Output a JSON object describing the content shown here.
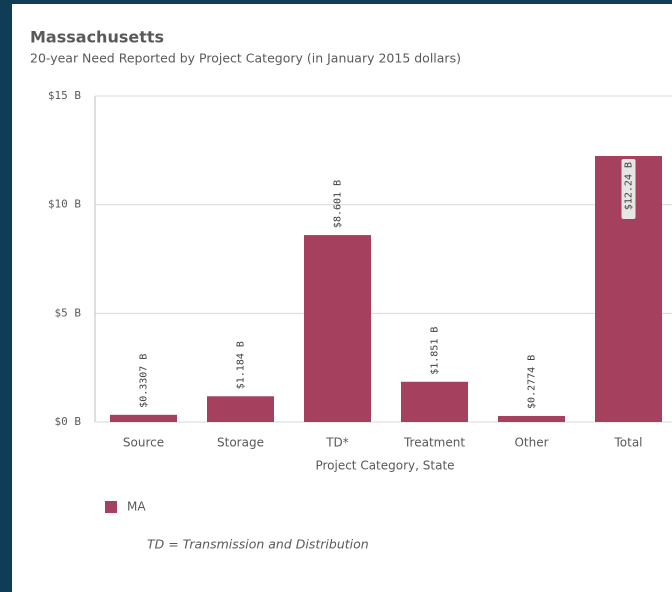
{
  "chart_data": {
    "type": "bar",
    "title": "Massachusetts",
    "subtitle": "20-year Need Reported by Project Category (in January 2015 dollars)",
    "x_label": "Project Category, State",
    "annotation": "TD = Transmission and Distribution",
    "categories": [
      "Source",
      "Storage",
      "TD*",
      "Treatment",
      "Other",
      "Total"
    ],
    "series": [
      {
        "name": "MA",
        "color": "#a5405f",
        "values": [
          0.3307,
          1.184,
          8.601,
          1.851,
          0.2774,
          12.24
        ],
        "value_labels": [
          "$0.3307 B",
          "$1.184 B",
          "$8.601 B",
          "$1.851 B",
          "$0.2774 B",
          "$12.24 B"
        ]
      }
    ],
    "ylim": [
      0,
      15
    ],
    "yticks": [
      {
        "value": 0,
        "label": "$0 B"
      },
      {
        "value": 5,
        "label": "$5 B"
      },
      {
        "value": 10,
        "label": "$10 B"
      },
      {
        "value": 15,
        "label": "$15 B"
      }
    ],
    "grid": true,
    "legend": "bottom-left"
  }
}
